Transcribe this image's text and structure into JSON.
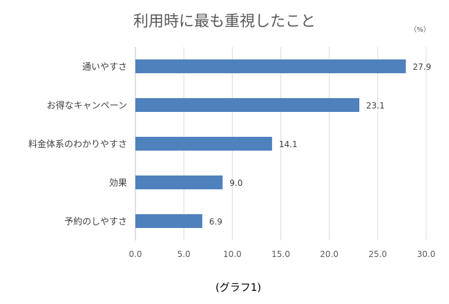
{
  "chart_data": {
    "type": "bar",
    "orientation": "horizontal",
    "title": "利用時に最も重視したこと",
    "unit_label": "（%）",
    "categories": [
      "通いやすさ",
      "お得なキャンペーン",
      "料金体系のわかりやすさ",
      "効果",
      "予約のしやすさ"
    ],
    "values": [
      27.9,
      23.1,
      14.1,
      9.0,
      6.9
    ],
    "value_labels": [
      "27.9",
      "23.1",
      "14.1",
      "9.0",
      "6.9"
    ],
    "xlim": [
      0,
      30
    ],
    "ticks": [
      0,
      5,
      10,
      15,
      20,
      25,
      30
    ],
    "tick_labels": [
      "0.0",
      "5.0",
      "10.0",
      "15.0",
      "20.0",
      "25.0",
      "30.0"
    ],
    "grid": true,
    "bar_color": "#4f81bd",
    "caption": "(グラフ1)"
  }
}
